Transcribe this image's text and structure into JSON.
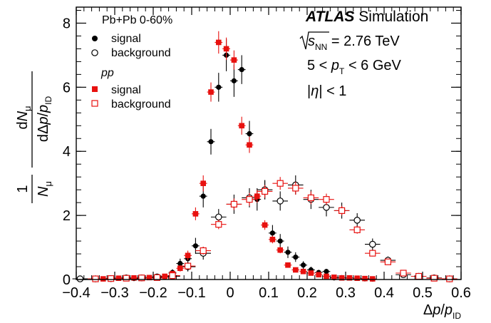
{
  "chart_data": {
    "type": "scatter",
    "xlim": [
      -0.4,
      0.6
    ],
    "ylim": [
      0,
      8.5
    ],
    "xticks": [
      -0.4,
      -0.3,
      -0.2,
      -0.1,
      0,
      0.1,
      0.2,
      0.3,
      0.4,
      0.5,
      0.6
    ],
    "yticks": [
      0,
      2,
      4,
      6,
      8
    ],
    "xtick_labels": [
      "−0.4",
      "−0.3",
      "−0.2",
      "−0.1",
      "0",
      "0.1",
      "0.2",
      "0.3",
      "0.4",
      "0.5",
      "0.6"
    ],
    "ytick_labels": [
      "0",
      "2",
      "4",
      "6",
      "8"
    ],
    "xlabel": "Δp/p_ID",
    "ylabel": "(1/N_μ) dN_μ/dΔp/p_ID",
    "legend": {
      "pbpb_title": "Pb+Pb 0-60%",
      "pp_title": "pp",
      "signal": "signal",
      "background": "background"
    },
    "annotations": {
      "experiment": "ATLAS",
      "tag": "Simulation",
      "energy": "√s_NN = 2.76 TeV",
      "pt": "5 < p_T < 6 GeV",
      "eta": "|η| < 1"
    },
    "series": [
      {
        "name": "signal",
        "group": "Pb+Pb 0-60%",
        "marker": "filled-circle",
        "color": "#000000",
        "x": [
          -0.39,
          -0.35,
          -0.33,
          -0.31,
          -0.29,
          -0.27,
          -0.25,
          -0.23,
          -0.21,
          -0.19,
          -0.17,
          -0.15,
          -0.13,
          -0.11,
          -0.09,
          -0.07,
          -0.05,
          -0.03,
          -0.01,
          0.01,
          0.03,
          0.05,
          0.07,
          0.09,
          0.11,
          0.13,
          0.15,
          0.17,
          0.19,
          0.21,
          0.23,
          0.25,
          0.27,
          0.29,
          0.31,
          0.33,
          0.35,
          0.37
        ],
        "y": [
          0.01,
          0.01,
          0.02,
          0.03,
          0.04,
          0.03,
          0.03,
          0.05,
          0.06,
          0.05,
          0.08,
          0.22,
          0.5,
          0.65,
          1.05,
          2.6,
          4.3,
          6.0,
          7.0,
          6.2,
          6.55,
          4.55,
          2.5,
          2.8,
          1.45,
          1.2,
          0.85,
          0.7,
          0.45,
          0.3,
          0.22,
          0.25,
          0.05,
          0.06,
          0.05,
          0.04,
          0.02,
          0.01
        ],
        "yerr": [
          0.03,
          0.03,
          0.04,
          0.04,
          0.04,
          0.04,
          0.04,
          0.05,
          0.05,
          0.05,
          0.06,
          0.1,
          0.15,
          0.2,
          0.25,
          0.35,
          0.4,
          0.45,
          0.5,
          0.5,
          0.45,
          0.4,
          0.35,
          0.3,
          0.25,
          0.22,
          0.18,
          0.15,
          0.12,
          0.1,
          0.08,
          0.08,
          0.05,
          0.05,
          0.05,
          0.04,
          0.03,
          0.03
        ]
      },
      {
        "name": "background",
        "group": "Pb+Pb 0-60%",
        "marker": "open-circle",
        "color": "#000000",
        "x": [
          -0.39,
          -0.35,
          -0.31,
          -0.27,
          -0.23,
          -0.19,
          -0.15,
          -0.11,
          -0.07,
          -0.03,
          0.01,
          0.05,
          0.09,
          0.13,
          0.17,
          0.21,
          0.25,
          0.29,
          0.33,
          0.37,
          0.41,
          0.45,
          0.49,
          0.53,
          0.57
        ],
        "y": [
          0.02,
          0.02,
          0.03,
          0.05,
          0.05,
          0.08,
          0.1,
          0.4,
          0.82,
          1.95,
          2.35,
          2.55,
          2.8,
          2.45,
          2.95,
          2.5,
          2.25,
          2.15,
          1.85,
          1.1,
          0.6,
          0.15,
          0.1,
          0.05,
          0.02
        ],
        "yerr": [
          0.03,
          0.03,
          0.04,
          0.05,
          0.05,
          0.08,
          0.1,
          0.15,
          0.2,
          0.25,
          0.3,
          0.3,
          0.3,
          0.3,
          0.3,
          0.3,
          0.28,
          0.25,
          0.22,
          0.18,
          0.12,
          0.08,
          0.06,
          0.05,
          0.04
        ]
      },
      {
        "name": "signal",
        "group": "pp",
        "marker": "filled-square",
        "color": "#e8110f",
        "x": [
          -0.33,
          -0.31,
          -0.29,
          -0.27,
          -0.25,
          -0.23,
          -0.21,
          -0.19,
          -0.17,
          -0.15,
          -0.13,
          -0.11,
          -0.09,
          -0.07,
          -0.05,
          -0.03,
          -0.01,
          0.01,
          0.03,
          0.05,
          0.07,
          0.09,
          0.11,
          0.13,
          0.15,
          0.17,
          0.19,
          0.21,
          0.23,
          0.25,
          0.27,
          0.29,
          0.31,
          0.33,
          0.35,
          0.37
        ],
        "y": [
          0.02,
          0.03,
          0.04,
          0.04,
          0.05,
          0.05,
          0.06,
          0.06,
          0.1,
          0.18,
          0.35,
          0.75,
          2.05,
          3.0,
          5.85,
          7.4,
          7.2,
          6.85,
          4.8,
          4.2,
          2.6,
          1.7,
          1.25,
          0.92,
          0.45,
          0.3,
          0.25,
          0.2,
          0.15,
          0.1,
          0.07,
          0.05,
          0.05,
          0.04,
          0.03,
          0.02
        ],
        "yerr": [
          0.03,
          0.03,
          0.03,
          0.03,
          0.03,
          0.03,
          0.04,
          0.04,
          0.05,
          0.08,
          0.1,
          0.15,
          0.2,
          0.25,
          0.3,
          0.35,
          0.35,
          0.3,
          0.28,
          0.25,
          0.2,
          0.15,
          0.12,
          0.1,
          0.08,
          0.06,
          0.05,
          0.05,
          0.04,
          0.04,
          0.03,
          0.03,
          0.03,
          0.03,
          0.02,
          0.02
        ]
      },
      {
        "name": "background",
        "group": "pp",
        "marker": "open-square",
        "color": "#e8110f",
        "x": [
          -0.35,
          -0.31,
          -0.27,
          -0.23,
          -0.19,
          -0.15,
          -0.11,
          -0.07,
          -0.03,
          0.01,
          0.05,
          0.09,
          0.13,
          0.17,
          0.21,
          0.25,
          0.29,
          0.33,
          0.37,
          0.41,
          0.45,
          0.49,
          0.53,
          0.57
        ],
        "y": [
          0.02,
          0.03,
          0.04,
          0.05,
          0.06,
          0.12,
          0.42,
          0.9,
          1.72,
          2.35,
          2.5,
          2.75,
          3.0,
          2.85,
          2.55,
          2.5,
          2.15,
          1.55,
          0.82,
          0.55,
          0.2,
          0.1,
          0.04,
          0.02
        ],
        "yerr": [
          0.02,
          0.03,
          0.03,
          0.04,
          0.05,
          0.06,
          0.1,
          0.12,
          0.15,
          0.18,
          0.2,
          0.2,
          0.2,
          0.2,
          0.2,
          0.18,
          0.15,
          0.12,
          0.1,
          0.08,
          0.05,
          0.04,
          0.03,
          0.02
        ]
      }
    ]
  }
}
